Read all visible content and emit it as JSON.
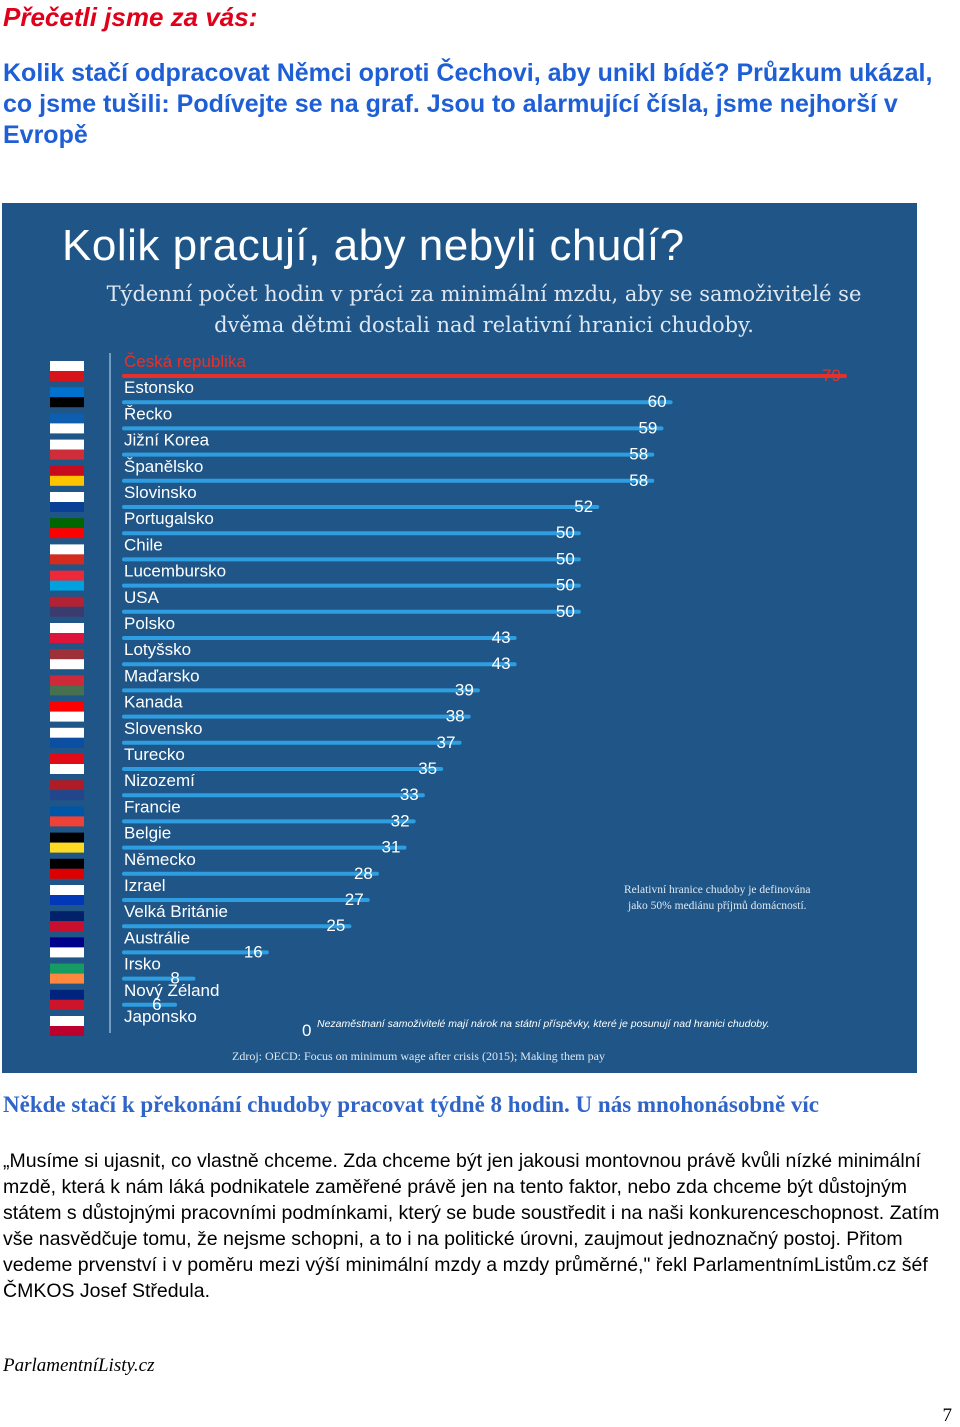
{
  "kicker": "Přečetli jsme za vás:",
  "headline": "Kolik stačí odpracovat Němci oproti Čechovi, aby unikl bídě? Průzkum ukázal, co jsme tušili: Podívejte se na graf. Jsou to alarmující čísla, jsme nejhorší v Evropě",
  "infographic": {
    "title": "Kolik pracují, aby nebyli chudí?",
    "subtitle": "Týdenní počet hodin v práci za minimální mzdu, aby se samoživitelé se dvěma dětmi dostali nad relativní hranici chudoby.",
    "note_poverty": "Relativní hranice chudoby je definována jako 50% mediánu příjmů domácností.",
    "note_zero": "Nezaměstnaní samoživitelé mají nárok na státní příspěvky, které je posunují nad hranici chudoby.",
    "source": "Zdroj: OECD: Focus on minimum wage after crisis (2015); Making them pay",
    "colors": {
      "background": "#1f5687",
      "bar": "#2e9ee0",
      "highlight": "#e8302a"
    }
  },
  "chart_data": {
    "type": "bar",
    "orientation": "horizontal",
    "title": "Kolik pracují, aby nebyli chudí?",
    "categories": [
      "Česká republika",
      "Estonsko",
      "Řecko",
      "Jižní Korea",
      "Španělsko",
      "Slovinsko",
      "Portugalsko",
      "Chile",
      "Lucembursko",
      "USA",
      "Polsko",
      "Lotyšsko",
      "Maďarsko",
      "Kanada",
      "Slovensko",
      "Turecko",
      "Nizozemí",
      "Francie",
      "Belgie",
      "Německo",
      "Izrael",
      "Velká Británie",
      "Austrálie",
      "Irsko",
      "Nový Zéland",
      "Japonsko"
    ],
    "values": [
      79,
      60,
      59,
      58,
      58,
      52,
      50,
      50,
      50,
      50,
      43,
      43,
      39,
      38,
      37,
      35,
      33,
      32,
      31,
      28,
      27,
      25,
      16,
      8,
      6,
      0
    ],
    "highlight": "Česká republika",
    "xlim": [
      0,
      79
    ],
    "grid": false,
    "legend": "none"
  },
  "caption": "Někde stačí k překonání chudoby pracovat týdně 8 hodin. U nás mnohonásobně víc",
  "body": "„Musíme si ujasnit, co vlastně chceme. Zda chceme být jen jakousi montovnou právě kvůli nízké minimální mzdě, která k nám láká podnikatele zaměřené právě jen na tento faktor, nebo zda chceme být důstojným státem s důstojnými pracovními podmínkami, který se bude soustředit i na naši konkurenceschopnost. Zatím vše nasvědčuje tomu, že nejsme schopni, a to i na politické úrovni, zaujmout jednoznačný postoj. Přitom vedeme prvenství i v poměru mezi výší minimální mzdy a mzdy průměrné,\" řekl ParlamentnímListům.cz šéf ČMKOS Josef Středula.",
  "source": "ParlamentníListy.cz",
  "page_number": "7"
}
